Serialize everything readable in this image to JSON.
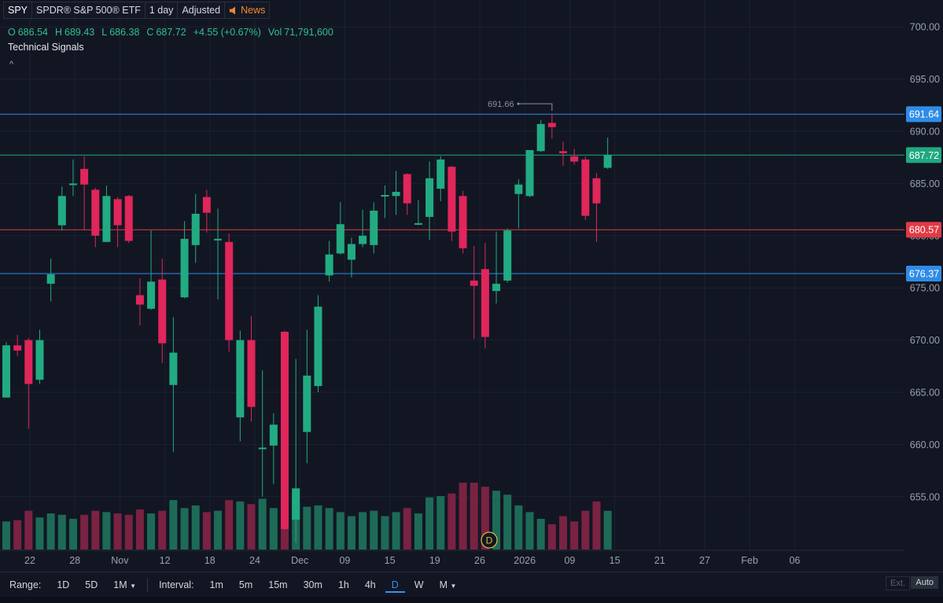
{
  "toolbar": {
    "symbol": "SPY",
    "name": "SPDR® S&P 500® ETF",
    "interval": "1 day",
    "adjusted": "Adjusted",
    "news": "News"
  },
  "ohlc": {
    "o_label": "O",
    "o": "686.54",
    "h_label": "H",
    "h": "689.43",
    "l_label": "L",
    "l": "686.38",
    "c_label": "C",
    "c": "687.72",
    "change": "+4.55 (+0.67%)",
    "vol_label": "Vol",
    "vol": "71,791,600"
  },
  "technical_signals": "Technical Signals",
  "range_bar": {
    "range_label": "Range:",
    "ranges": [
      "1D",
      "5D",
      "1M"
    ],
    "interval_label": "Interval:",
    "intervals": [
      "1m",
      "5m",
      "15m",
      "30m",
      "1h",
      "4h",
      "D",
      "W",
      "M"
    ],
    "active_interval": "D",
    "ext": "Ext.",
    "auto": "Auto"
  },
  "colors": {
    "up": "#22ab82",
    "down": "#e0265a",
    "blue_line": "#2f8ce8",
    "green_line": "#1fa980",
    "red_line": "#e03b45",
    "background": "#121623"
  },
  "chart_data": {
    "type": "candlestick",
    "y_axis_ticks": [
      "700.00",
      "695.00",
      "690.00",
      "685.00",
      "680.00",
      "675.00",
      "670.00",
      "665.00",
      "660.00",
      "655.00"
    ],
    "ylim": [
      650,
      702
    ],
    "x_axis_ticks": [
      "22",
      "28",
      "Nov",
      "12",
      "18",
      "24",
      "Dec",
      "09",
      "15",
      "19",
      "26",
      "2026",
      "09",
      "15",
      "21",
      "27",
      "Feb",
      "06"
    ],
    "horizontal_lines": [
      {
        "value": 691.64,
        "label": "691.64",
        "color": "blue"
      },
      {
        "value": 687.72,
        "label": "687.72",
        "color": "green"
      },
      {
        "value": 680.57,
        "label": "680.57",
        "color": "red"
      },
      {
        "value": 676.37,
        "label": "676.37",
        "color": "blue"
      }
    ],
    "high_annotation": {
      "value": 691.66,
      "label": "691.66"
    },
    "dividend_marker": "D",
    "candles": [
      {
        "o": 664.5,
        "h": 669.8,
        "l": 664.5,
        "c": 669.5,
        "v": 0.42
      },
      {
        "o": 669.5,
        "h": 670.5,
        "l": 668.5,
        "c": 669.0,
        "v": 0.44
      },
      {
        "o": 670.0,
        "h": 670.2,
        "l": 661.5,
        "c": 665.8,
        "v": 0.58
      },
      {
        "o": 666.2,
        "h": 671.0,
        "l": 665.8,
        "c": 670.0,
        "v": 0.48
      },
      {
        "o": 675.4,
        "h": 677.8,
        "l": 673.7,
        "c": 676.3,
        "v": 0.54
      },
      {
        "o": 681.0,
        "h": 684.7,
        "l": 680.5,
        "c": 683.8,
        "v": 0.52
      },
      {
        "o": 685.0,
        "h": 687.3,
        "l": 683.8,
        "c": 685.0,
        "v": 0.46
      },
      {
        "o": 686.4,
        "h": 687.6,
        "l": 680.5,
        "c": 684.9,
        "v": 0.52
      },
      {
        "o": 684.4,
        "h": 684.6,
        "l": 678.9,
        "c": 680.0,
        "v": 0.58
      },
      {
        "o": 679.4,
        "h": 684.8,
        "l": 679.4,
        "c": 683.8,
        "v": 0.56
      },
      {
        "o": 683.5,
        "h": 683.7,
        "l": 678.9,
        "c": 681.0,
        "v": 0.54
      },
      {
        "o": 683.8,
        "h": 683.9,
        "l": 679.3,
        "c": 679.5,
        "v": 0.52
      },
      {
        "o": 674.3,
        "h": 675.9,
        "l": 671.4,
        "c": 673.4,
        "v": 0.6
      },
      {
        "o": 673.0,
        "h": 680.5,
        "l": 672.9,
        "c": 675.6,
        "v": 0.54
      },
      {
        "o": 675.8,
        "h": 677.8,
        "l": 667.8,
        "c": 669.7,
        "v": 0.58
      },
      {
        "o": 665.7,
        "h": 672.2,
        "l": 659.3,
        "c": 668.8,
        "v": 0.74
      },
      {
        "o": 674.1,
        "h": 681.4,
        "l": 674.0,
        "c": 679.7,
        "v": 0.62
      },
      {
        "o": 679.1,
        "h": 684.0,
        "l": 677.4,
        "c": 682.1,
        "v": 0.66
      },
      {
        "o": 683.7,
        "h": 684.4,
        "l": 680.3,
        "c": 682.2,
        "v": 0.56
      },
      {
        "o": 679.7,
        "h": 682.6,
        "l": 673.9,
        "c": 679.7,
        "v": 0.58
      },
      {
        "o": 679.4,
        "h": 680.2,
        "l": 668.9,
        "c": 670.0,
        "v": 0.74
      },
      {
        "o": 662.6,
        "h": 670.9,
        "l": 660.3,
        "c": 670.0,
        "v": 0.72
      },
      {
        "o": 670.0,
        "h": 672.3,
        "l": 662.2,
        "c": 663.6,
        "v": 0.68
      },
      {
        "o": 659.6,
        "h": 667.1,
        "l": 655.0,
        "c": 659.7,
        "v": 0.76
      },
      {
        "o": 659.9,
        "h": 663.0,
        "l": 656.2,
        "c": 661.9,
        "v": 0.62
      },
      {
        "o": 670.8,
        "h": 670.9,
        "l": 651.8,
        "c": 651.9,
        "v": 0.96
      },
      {
        "o": 652.8,
        "h": 668.2,
        "l": 650.6,
        "c": 655.8,
        "v": 0.78
      },
      {
        "o": 661.2,
        "h": 671.0,
        "l": 658.2,
        "c": 666.6,
        "v": 0.64
      },
      {
        "o": 665.6,
        "h": 674.3,
        "l": 665.0,
        "c": 673.2,
        "v": 0.66
      },
      {
        "o": 676.2,
        "h": 679.5,
        "l": 675.6,
        "c": 678.2,
        "v": 0.62
      },
      {
        "o": 678.3,
        "h": 683.2,
        "l": 678.2,
        "c": 681.1,
        "v": 0.56
      },
      {
        "o": 677.7,
        "h": 679.8,
        "l": 676.0,
        "c": 679.2,
        "v": 0.5
      },
      {
        "o": 679.2,
        "h": 682.5,
        "l": 678.9,
        "c": 680.0,
        "v": 0.56
      },
      {
        "o": 679.1,
        "h": 683.2,
        "l": 678.3,
        "c": 682.4,
        "v": 0.58
      },
      {
        "o": 683.9,
        "h": 684.8,
        "l": 681.7,
        "c": 683.9,
        "v": 0.5
      },
      {
        "o": 683.8,
        "h": 686.2,
        "l": 682.0,
        "c": 684.2,
        "v": 0.56
      },
      {
        "o": 685.9,
        "h": 686.0,
        "l": 682.0,
        "c": 683.1,
        "v": 0.62
      },
      {
        "o": 681.1,
        "h": 683.4,
        "l": 681.0,
        "c": 681.2,
        "v": 0.54
      },
      {
        "o": 681.8,
        "h": 687.1,
        "l": 679.6,
        "c": 685.5,
        "v": 0.78
      },
      {
        "o": 684.5,
        "h": 687.6,
        "l": 683.3,
        "c": 687.3,
        "v": 0.8
      },
      {
        "o": 686.6,
        "h": 686.7,
        "l": 679.5,
        "c": 680.4,
        "v": 0.84
      },
      {
        "o": 683.8,
        "h": 684.3,
        "l": 678.3,
        "c": 678.8,
        "v": 1.0
      },
      {
        "o": 675.7,
        "h": 679.0,
        "l": 670.1,
        "c": 675.2,
        "v": 1.0
      },
      {
        "o": 676.8,
        "h": 679.3,
        "l": 669.2,
        "c": 670.3,
        "v": 0.94
      },
      {
        "o": 674.7,
        "h": 680.4,
        "l": 673.5,
        "c": 675.4,
        "v": 0.88
      },
      {
        "o": 675.7,
        "h": 680.7,
        "l": 675.5,
        "c": 680.5,
        "v": 0.82
      },
      {
        "o": 684.0,
        "h": 685.4,
        "l": 680.7,
        "c": 684.9,
        "v": 0.66
      },
      {
        "o": 683.8,
        "h": 687.7,
        "l": 683.7,
        "c": 688.2,
        "v": 0.56
      },
      {
        "o": 688.1,
        "h": 691.1,
        "l": 688.0,
        "c": 690.7,
        "v": 0.46
      },
      {
        "o": 690.8,
        "h": 691.7,
        "l": 689.3,
        "c": 690.4,
        "v": 0.38
      },
      {
        "o": 688.1,
        "h": 689.0,
        "l": 686.7,
        "c": 687.9,
        "v": 0.5
      },
      {
        "o": 687.6,
        "h": 688.3,
        "l": 686.8,
        "c": 687.1,
        "v": 0.42
      },
      {
        "o": 687.3,
        "h": 687.6,
        "l": 681.5,
        "c": 681.9,
        "v": 0.58
      },
      {
        "o": 685.5,
        "h": 686.0,
        "l": 679.4,
        "c": 683.1,
        "v": 0.72
      },
      {
        "o": 686.5,
        "h": 689.4,
        "l": 686.4,
        "c": 687.7,
        "v": 0.58
      }
    ]
  }
}
